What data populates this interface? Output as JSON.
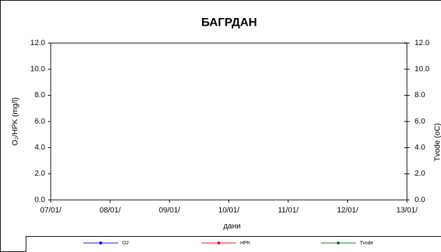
{
  "chart_data": {
    "type": "line",
    "title": "БАГРДАН",
    "x_label": "дани",
    "y_label": "O₂/HPK (mg/l)",
    "y2_label": "Tvode (oC)",
    "categories": [
      "07/01/",
      "08/01/",
      "09/01/",
      "10/01/",
      "11/01/",
      "12/01/",
      "13/01/"
    ],
    "series": [
      {
        "name": "O2",
        "color": "#0000ff",
        "values": [
          null,
          null,
          null,
          null,
          null,
          null,
          null
        ]
      },
      {
        "name": "HPK",
        "color": "#ff0000",
        "values": [
          null,
          null,
          null,
          null,
          null,
          null,
          null
        ]
      },
      {
        "name": "Tvode",
        "color": "#008000",
        "axis": "y2",
        "values": [
          null,
          null,
          null,
          null,
          null,
          null,
          null
        ]
      }
    ],
    "ylim": [
      0,
      12
    ],
    "yticks": [
      {
        "value": 0,
        "label": "0.0"
      },
      {
        "value": 2,
        "label": "2.0"
      },
      {
        "value": 4,
        "label": "4.0"
      },
      {
        "value": 6,
        "label": "6.0"
      },
      {
        "value": 8,
        "label": "8.0"
      },
      {
        "value": 10,
        "label": "10.0"
      },
      {
        "value": 12,
        "label": "12.0"
      }
    ],
    "y2lim": [
      0,
      12
    ],
    "y2ticks": [
      {
        "value": 0,
        "label": "0.0"
      },
      {
        "value": 2,
        "label": "2.0"
      },
      {
        "value": 4,
        "label": "4.0"
      },
      {
        "value": 6,
        "label": "6.0"
      },
      {
        "value": 8,
        "label": "8.0"
      },
      {
        "value": 10,
        "label": "10.0"
      },
      {
        "value": 12,
        "label": "12.0"
      }
    ],
    "grid": false
  }
}
